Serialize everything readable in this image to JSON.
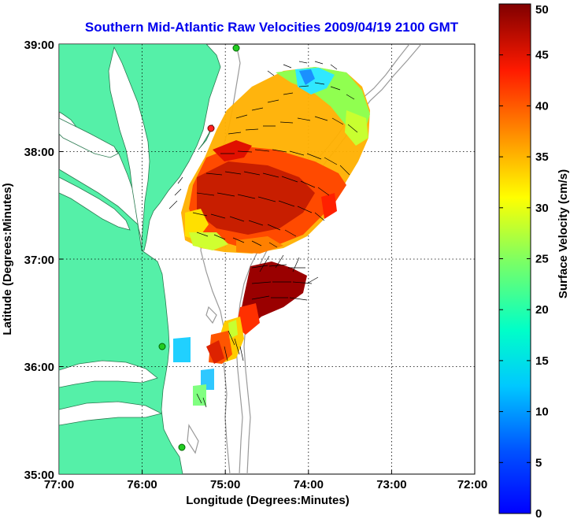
{
  "chart_data": {
    "type": "map",
    "title": "Southern Mid-Atlantic Raw Velocities 2009/04/19 2100 GMT",
    "xlabel": "Longitude (Degrees:Minutes)",
    "ylabel": "Latitude (Degrees:Minutes)",
    "xlim": [
      -77,
      -72
    ],
    "ylim": [
      35,
      39
    ],
    "x_ticks": [
      {
        "value": -77,
        "label": "77:00"
      },
      {
        "value": -76,
        "label": "76:00"
      },
      {
        "value": -75,
        "label": "75:00"
      },
      {
        "value": -74,
        "label": "74:00"
      },
      {
        "value": -73,
        "label": "73:00"
      },
      {
        "value": -72,
        "label": "72:00"
      }
    ],
    "y_ticks": [
      {
        "value": 35,
        "label": "35:00"
      },
      {
        "value": 36,
        "label": "36:00"
      },
      {
        "value": 37,
        "label": "37:00"
      },
      {
        "value": 38,
        "label": "38:00"
      },
      {
        "value": 39,
        "label": "39:00"
      }
    ],
    "grid": true,
    "colorbar": {
      "label": "Surface Velocity (cm/s)",
      "min": 0,
      "max": 50,
      "ticks": [
        "0",
        "5",
        "10",
        "15",
        "20",
        "25",
        "30",
        "35",
        "40",
        "45",
        "50"
      ],
      "colormap": "jet"
    },
    "land_color": "#55f0a8",
    "site_marker_color": "#22cc22",
    "site_marker_red": "#ff2222"
  }
}
